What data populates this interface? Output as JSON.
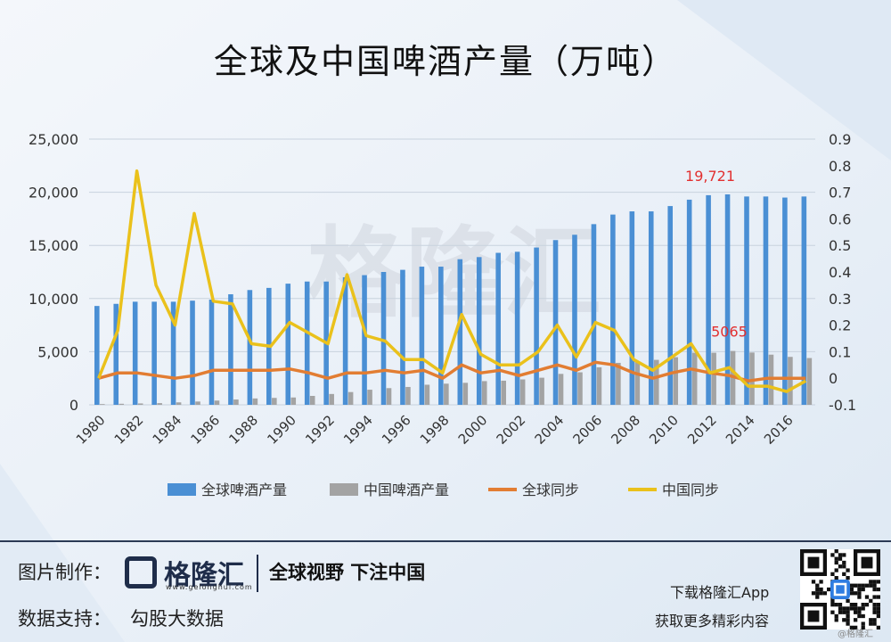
{
  "title": "全球及中国啤酒产量（万吨）",
  "watermark": "格隆汇",
  "chart_data": {
    "type": "bar",
    "title": "全球及中国啤酒产量（万吨）",
    "x": [
      1980,
      1981,
      1982,
      1983,
      1984,
      1985,
      1986,
      1987,
      1988,
      1989,
      1990,
      1991,
      1992,
      1993,
      1994,
      1995,
      1996,
      1997,
      1998,
      1999,
      2000,
      2001,
      2002,
      2003,
      2004,
      2005,
      2006,
      2007,
      2008,
      2009,
      2010,
      2011,
      2012,
      2013,
      2014,
      2015,
      2016,
      2017
    ],
    "x_tick_labels": [
      "1980",
      "1982",
      "1984",
      "1986",
      "1988",
      "1990",
      "1992",
      "1994",
      "1996",
      "1998",
      "2000",
      "2002",
      "2004",
      "2006",
      "2008",
      "2010",
      "2012",
      "2014",
      "2016"
    ],
    "y_left": {
      "ylim": [
        0,
        25000
      ],
      "ticks": [
        "0",
        "5,000",
        "10,000",
        "15,000",
        "20,000",
        "25,000"
      ],
      "tick_values": [
        0,
        5000,
        10000,
        15000,
        20000,
        25000
      ]
    },
    "y_right": {
      "ylim": [
        -0.1,
        0.9
      ],
      "ticks": [
        "-0.1",
        "0",
        "0.1",
        "0.2",
        "0.3",
        "0.4",
        "0.5",
        "0.6",
        "0.7",
        "0.8",
        "0.9"
      ],
      "tick_values": [
        -0.1,
        0,
        0.1,
        0.2,
        0.3,
        0.4,
        0.5,
        0.6,
        0.7,
        0.8,
        0.9
      ]
    },
    "series": [
      {
        "name": "全球啤酒产量",
        "kind": "bar",
        "axis": "left",
        "color": "#4a8fd4",
        "values": [
          9300,
          9500,
          9700,
          9700,
          9700,
          9800,
          9900,
          10400,
          10800,
          11000,
          11400,
          11600,
          11600,
          12000,
          12200,
          12500,
          12700,
          13000,
          13000,
          13700,
          13900,
          14300,
          14400,
          14800,
          15500,
          16000,
          17000,
          17900,
          18200,
          18200,
          18700,
          19300,
          19721,
          19800,
          19600,
          19600,
          19500,
          19600
        ]
      },
      {
        "name": "中国啤酒产量",
        "kind": "bar",
        "axis": "left",
        "color": "#a3a3a3",
        "values": [
          70,
          100,
          130,
          160,
          230,
          310,
          400,
          500,
          600,
          650,
          690,
          840,
          1020,
          1200,
          1420,
          1570,
          1680,
          1890,
          1990,
          2070,
          2230,
          2270,
          2390,
          2550,
          2910,
          3060,
          3530,
          3950,
          4100,
          4230,
          4480,
          4900,
          4900,
          5065,
          4920,
          4720,
          4510,
          4400
        ]
      },
      {
        "name": "全球同步",
        "kind": "line",
        "axis": "right",
        "color": "#e27d32",
        "values": [
          0,
          0.02,
          0.02,
          0.01,
          0,
          0.01,
          0.03,
          0.03,
          0.03,
          0.03,
          0.035,
          0.02,
          0,
          0.02,
          0.02,
          0.03,
          0.02,
          0.03,
          0,
          0.05,
          0.02,
          0.03,
          0.01,
          0.03,
          0.05,
          0.03,
          0.06,
          0.05,
          0.02,
          0,
          0.02,
          0.035,
          0.02,
          0.01,
          -0.01,
          0,
          0,
          0
        ]
      },
      {
        "name": "中国同步",
        "kind": "line",
        "axis": "right",
        "color": "#eac11b",
        "values": [
          0,
          0.18,
          0.78,
          0.35,
          0.2,
          0.62,
          0.29,
          0.28,
          0.13,
          0.12,
          0.21,
          0.17,
          0.13,
          0.39,
          0.16,
          0.14,
          0.07,
          0.07,
          0.02,
          0.24,
          0.09,
          0.05,
          0.05,
          0.1,
          0.2,
          0.08,
          0.21,
          0.18,
          0.07,
          0.03,
          0.08,
          0.13,
          0.02,
          0.04,
          -0.03,
          -0.03,
          -0.05,
          -0.01
        ]
      }
    ],
    "annotations": [
      {
        "text": "19,721",
        "series": 0,
        "index": 32,
        "color": "#e23030"
      },
      {
        "text": "5065",
        "series": 1,
        "index": 33,
        "color": "#e23030"
      }
    ],
    "legend": {
      "placement": "bottom"
    },
    "grid": true
  },
  "footer": {
    "made_by_label": "图片制作：",
    "brand": "格隆汇",
    "brand_url": "www.gelonghui.com",
    "slogan": "全球视野 下注中国",
    "data_support_label": "数据支持：",
    "data_support_value": "勾股大数据",
    "download": "下载格隆汇App",
    "more": "获取更多精彩内容",
    "corner_mark": "@格隆汇"
  }
}
